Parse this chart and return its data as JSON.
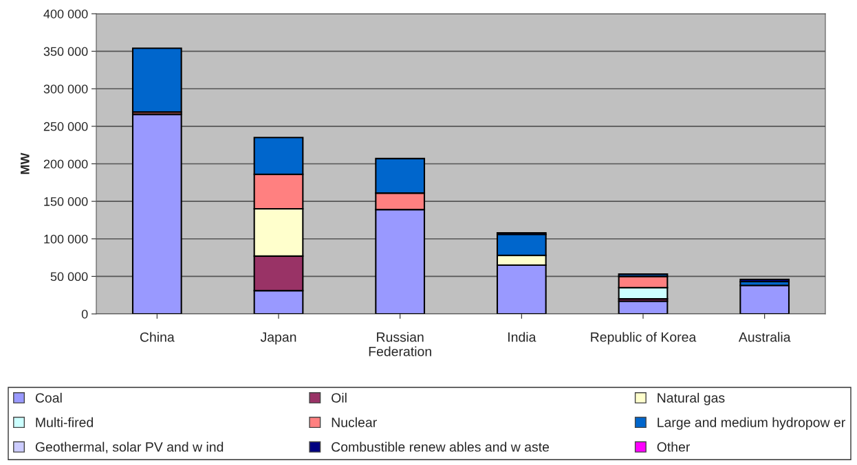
{
  "chart_data": {
    "type": "bar",
    "stacked": true,
    "ylabel": "MW",
    "categories": [
      "China",
      "Japan",
      "Russian\nFederation",
      "India",
      "Republic of Korea",
      "Australia"
    ],
    "series": [
      {
        "name": "Coal",
        "color": "#9999ff",
        "values": [
          266000,
          31000,
          139000,
          65000,
          17000,
          38000
        ]
      },
      {
        "name": "Oil",
        "color": "#993366",
        "values": [
          null,
          46000,
          null,
          null,
          3000,
          null
        ]
      },
      {
        "name": "Natural gas",
        "color": "#ffffcc",
        "values": [
          null,
          63000,
          null,
          13000,
          null,
          null
        ]
      },
      {
        "name": "Multi-fired",
        "color": "#ccffff",
        "values": [
          null,
          null,
          null,
          null,
          15000,
          null
        ]
      },
      {
        "name": "Nuclear",
        "color": "#ff8080",
        "values": [
          3000,
          46000,
          22000,
          null,
          15000,
          null
        ]
      },
      {
        "name": "Large and medium hydropow er",
        "color": "#0066cc",
        "values": [
          85000,
          49000,
          46000,
          28000,
          3000,
          5000
        ]
      },
      {
        "name": "Geothermal, solar PV and w ind",
        "color": "#ccccff",
        "values": [
          null,
          null,
          null,
          null,
          null,
          null
        ]
      },
      {
        "name": "Combustible renew ables and w aste",
        "color": "#000080",
        "values": [
          null,
          null,
          null,
          2000,
          null,
          3000
        ]
      },
      {
        "name": "Other",
        "color": "#ff00ff",
        "values": [
          null,
          null,
          null,
          null,
          null,
          null
        ]
      }
    ],
    "ylim": [
      0,
      400000
    ],
    "yticks": [
      0,
      {
        "value": 50000,
        "label": "50 000"
      },
      {
        "value": 100000,
        "label": "100 000"
      },
      {
        "value": 150000,
        "label": "150 000"
      },
      {
        "value": 200000,
        "label": "200 000"
      },
      {
        "value": 250000,
        "label": "250 000"
      },
      {
        "value": 300000,
        "label": "300 000"
      },
      {
        "value": 350000,
        "label": "350 000"
      },
      {
        "value": 400000,
        "label": "400 000"
      }
    ],
    "grid": "y",
    "legend": "bottom"
  }
}
